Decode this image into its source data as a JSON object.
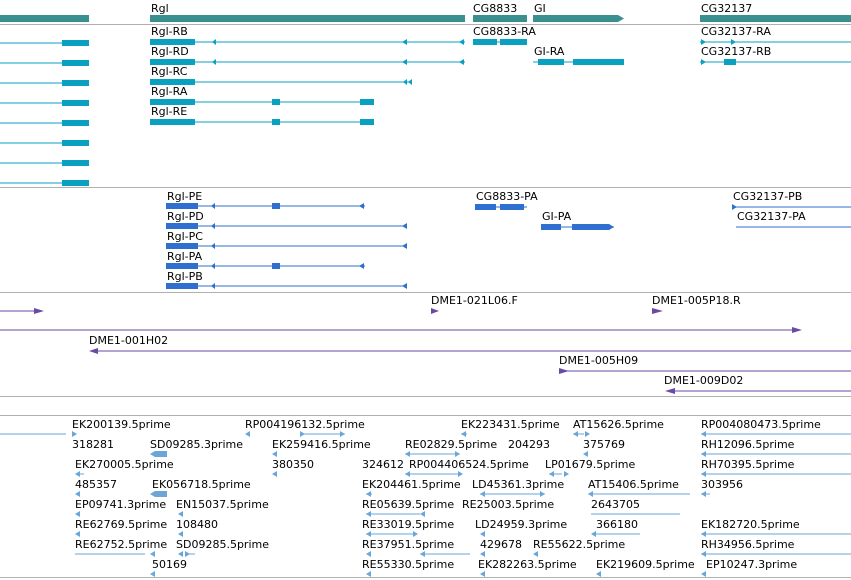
{
  "colors": {
    "gene": "#3a8f8f",
    "transcript": "#0aa0c0",
    "protein": "#2f6fcf",
    "clone": "#6a4aa5",
    "est": "#6aa6d8",
    "track_divider": "#b0b0b0"
  },
  "tracks": {
    "genes": {
      "features": [
        {
          "id": "gene-rgl",
          "label": "Rgl"
        },
        {
          "id": "gene-cg8833",
          "label": "CG8833"
        },
        {
          "id": "gene-gi",
          "label": "GI"
        },
        {
          "id": "gene-cg32137",
          "label": "CG32137"
        }
      ]
    },
    "transcripts": {
      "features": [
        {
          "id": "tx-rgl-rb",
          "label": "Rgl-RB"
        },
        {
          "id": "tx-rgl-rd",
          "label": "Rgl-RD"
        },
        {
          "id": "tx-rgl-rc",
          "label": "Rgl-RC"
        },
        {
          "id": "tx-rgl-ra",
          "label": "Rgl-RA"
        },
        {
          "id": "tx-rgl-re",
          "label": "Rgl-RE"
        },
        {
          "id": "tx-cg8833-ra",
          "label": "CG8833-RA"
        },
        {
          "id": "tx-gi-ra",
          "label": "GI-RA"
        },
        {
          "id": "tx-cg32137-ra",
          "label": "CG32137-RA"
        },
        {
          "id": "tx-cg32137-rb",
          "label": "CG32137-RB"
        }
      ]
    },
    "proteins": {
      "features": [
        {
          "id": "pp-rgl-pe",
          "label": "Rgl-PE"
        },
        {
          "id": "pp-rgl-pd",
          "label": "Rgl-PD"
        },
        {
          "id": "pp-rgl-pc",
          "label": "Rgl-PC"
        },
        {
          "id": "pp-rgl-pa",
          "label": "Rgl-PA"
        },
        {
          "id": "pp-rgl-pb",
          "label": "Rgl-PB"
        },
        {
          "id": "pp-cg8833-pa",
          "label": "CG8833-PA"
        },
        {
          "id": "pp-gi-pa",
          "label": "GI-PA"
        },
        {
          "id": "pp-cg32137-pb",
          "label": "CG32137-PB"
        },
        {
          "id": "pp-cg32137-pa",
          "label": "CG32137-PA"
        }
      ]
    },
    "clones": {
      "features": [
        {
          "id": "cl-021l06",
          "label": "DME1-021L06.F"
        },
        {
          "id": "cl-005p18",
          "label": "DME1-005P18.R"
        },
        {
          "id": "cl-001h02",
          "label": "DME1-001H02"
        },
        {
          "id": "cl-005h09",
          "label": "DME1-005H09"
        },
        {
          "id": "cl-009d02",
          "label": "DME1-009D02"
        }
      ]
    },
    "ests": {
      "features": [
        {
          "id": "est-1",
          "label": "EK200139.5prime"
        },
        {
          "id": "est-2",
          "label": "RP004196132.5prime"
        },
        {
          "id": "est-3",
          "label": "EK223431.5prime"
        },
        {
          "id": "est-4",
          "label": "AT15626.5prime"
        },
        {
          "id": "est-5",
          "label": "RP004080473.5prime"
        },
        {
          "id": "est-6",
          "label": "318281"
        },
        {
          "id": "est-7",
          "label": "SD09285.3prime"
        },
        {
          "id": "est-8",
          "label": "EK259416.5prime"
        },
        {
          "id": "est-9",
          "label": "RE02829.5prime"
        },
        {
          "id": "est-10",
          "label": "204293"
        },
        {
          "id": "est-11",
          "label": "375769"
        },
        {
          "id": "est-12",
          "label": "RH12096.5prime"
        },
        {
          "id": "est-13",
          "label": "EK270005.5prime"
        },
        {
          "id": "est-14",
          "label": "380350"
        },
        {
          "id": "est-15",
          "label": "324612"
        },
        {
          "id": "est-16",
          "label": "RP004406524.5prime"
        },
        {
          "id": "est-17",
          "label": "LP01679.5prime"
        },
        {
          "id": "est-18",
          "label": "RH70395.5prime"
        },
        {
          "id": "est-19",
          "label": "485357"
        },
        {
          "id": "est-20",
          "label": "EK056718.5prime"
        },
        {
          "id": "est-21",
          "label": "EK204461.5prime"
        },
        {
          "id": "est-22",
          "label": "LD45361.3prime"
        },
        {
          "id": "est-23",
          "label": "AT15406.5prime"
        },
        {
          "id": "est-24",
          "label": "303956"
        },
        {
          "id": "est-25",
          "label": "EP09741.3prime"
        },
        {
          "id": "est-26",
          "label": "EN15037.5prime"
        },
        {
          "id": "est-27",
          "label": "RE05639.5prime"
        },
        {
          "id": "est-28",
          "label": "RE25003.5prime"
        },
        {
          "id": "est-29",
          "label": "2643705"
        },
        {
          "id": "est-30",
          "label": "RE62769.5prime"
        },
        {
          "id": "est-31",
          "label": "108480"
        },
        {
          "id": "est-32",
          "label": "RE33019.5prime"
        },
        {
          "id": "est-33",
          "label": "LD24959.3prime"
        },
        {
          "id": "est-34",
          "label": "366180"
        },
        {
          "id": "est-35",
          "label": "EK182720.5prime"
        },
        {
          "id": "est-36",
          "label": "RE62752.5prime"
        },
        {
          "id": "est-37",
          "label": "SD09285.5prime"
        },
        {
          "id": "est-38",
          "label": "RE37951.5prime"
        },
        {
          "id": "est-39",
          "label": "429678"
        },
        {
          "id": "est-40",
          "label": "RE55622.5prime"
        },
        {
          "id": "est-41",
          "label": "RH34956.5prime"
        },
        {
          "id": "est-42",
          "label": "50169"
        },
        {
          "id": "est-43",
          "label": "RE55330.5prime"
        },
        {
          "id": "est-44",
          "label": "EK282263.5prime"
        },
        {
          "id": "est-45",
          "label": "EK219609.5prime"
        },
        {
          "id": "est-46",
          "label": "EP10247.3prime"
        }
      ]
    }
  }
}
